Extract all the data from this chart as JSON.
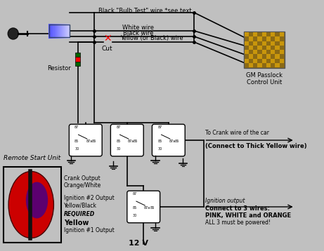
{
  "bg_color": "#c0c0c0",
  "texts": {
    "bulb_test": "Black \"Bulb Test\" wire *see text",
    "white_wire": "White wire",
    "black_wire": "Black wire",
    "yellow_wire": "Yellow (or Black) wire",
    "cut": "Cut",
    "resistor": "Resistor",
    "gm_passlock1": "GM Passlock",
    "gm_passlock2": "Control Unit",
    "remote_start": "Remote Start Unit",
    "crank_output": "Crank Output\nOrange/White",
    "ign2_output": "Ignition #2 Output\nYellow/Black",
    "required": "REQUIRED",
    "yellow": "Yellow",
    "ign1_output": "Ignition #1 Output",
    "12v": "12 V",
    "to_crank": "To Crank wire of the car",
    "connect_thick": "(Connect to Thick Yellow wire)",
    "ign_output": "Ignition output",
    "connect3": "Connect to 3 wires:",
    "pink_white": "PINK, WHITE and ORANGE",
    "all3": "ALL 3 must be powered!"
  }
}
